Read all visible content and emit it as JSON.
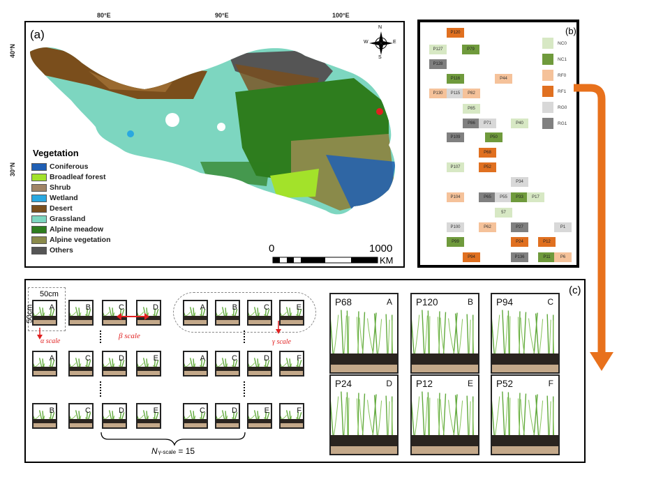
{
  "panel_a": {
    "label": "(a)",
    "lon_ticks": [
      "80°E",
      "90°E",
      "100°E"
    ],
    "lat_ticks": [
      "40°N",
      "30°N"
    ],
    "legend_title": "Vegetation",
    "legend": [
      {
        "name": "Coniferous",
        "color": "#1f5fb4"
      },
      {
        "name": "Broadleaf forest",
        "color": "#a3e22a"
      },
      {
        "name": "Shrub",
        "color": "#a08466"
      },
      {
        "name": "Wetland",
        "color": "#2aa8e0"
      },
      {
        "name": "Desert",
        "color": "#7a4e1c"
      },
      {
        "name": "Grassland",
        "color": "#7dd6c0"
      },
      {
        "name": "Alpine meadow",
        "color": "#2e7d1e"
      },
      {
        "name": "Alpine vegetation",
        "color": "#8a8a4a"
      },
      {
        "name": "Others",
        "color": "#555555"
      }
    ],
    "scale_start": "0",
    "scale_end": "1000",
    "scale_unit": "KM",
    "compass": {
      "n": "N",
      "s": "S",
      "e": "E",
      "w": "W"
    }
  },
  "panel_b": {
    "label": "(b)",
    "key": [
      {
        "name": "NC0",
        "color": "#d7e8c4"
      },
      {
        "name": "NC1",
        "color": "#6f9a3c"
      },
      {
        "name": "RF0",
        "color": "#f5c29a"
      },
      {
        "name": "RF1",
        "color": "#e07020"
      },
      {
        "name": "RG0",
        "color": "#d8d8d8"
      },
      {
        "name": "RG1",
        "color": "#808080"
      }
    ],
    "plots": [
      {
        "id": "P120",
        "t": "RF1"
      },
      {
        "id": "P127",
        "t": "NC0"
      },
      {
        "id": "P79",
        "t": "NC1"
      },
      {
        "id": "P128",
        "t": "RG1"
      },
      {
        "id": "P116",
        "t": "NC1"
      },
      {
        "id": "P44",
        "t": "RF0"
      },
      {
        "id": "P130",
        "t": "RF0"
      },
      {
        "id": "P115",
        "t": "RG0"
      },
      {
        "id": "P82",
        "t": "RF0"
      },
      {
        "id": "P85",
        "t": "NC0"
      },
      {
        "id": "P86",
        "t": "RG1"
      },
      {
        "id": "P71",
        "t": "RG0"
      },
      {
        "id": "P40",
        "t": "NC0"
      },
      {
        "id": "P109",
        "t": "RG1"
      },
      {
        "id": "P50",
        "t": "NC1"
      },
      {
        "id": "P68",
        "t": "RF1"
      },
      {
        "id": "P107",
        "t": "NC0"
      },
      {
        "id": "P52",
        "t": "RF1"
      },
      {
        "id": "P34",
        "t": "RG0"
      },
      {
        "id": "P104",
        "t": "RF0"
      },
      {
        "id": "P65",
        "t": "RG1"
      },
      {
        "id": "P55",
        "t": "RG0"
      },
      {
        "id": "P33",
        "t": "NC1"
      },
      {
        "id": "P17",
        "t": "NC0"
      },
      {
        "id": "57",
        "t": "NC0"
      },
      {
        "id": "P100",
        "t": "RG0"
      },
      {
        "id": "P62",
        "t": "RF0"
      },
      {
        "id": "P27",
        "t": "RG1"
      },
      {
        "id": "P1",
        "t": "RG0"
      },
      {
        "id": "P99",
        "t": "NC1"
      },
      {
        "id": "P24",
        "t": "RF1"
      },
      {
        "id": "P12",
        "t": "RF1"
      },
      {
        "id": "P94",
        "t": "RF1"
      },
      {
        "id": "P136",
        "t": "RG1"
      },
      {
        "id": "P11",
        "t": "NC1"
      },
      {
        "id": "P6",
        "t": "RF0"
      }
    ]
  },
  "panel_c": {
    "label": "(c)",
    "size_w": "50cm",
    "size_h": "50cm",
    "alpha_label": "α scale",
    "beta_label": "β scale",
    "gamma_label": "γ scale",
    "n_label": "N",
    "n_sub": "γ-scale",
    "n_value": "= 15",
    "rows": [
      [
        "A",
        "B",
        "C",
        "D",
        "A",
        "B",
        "C",
        "E"
      ],
      [
        "A",
        "C",
        "D",
        "E",
        "A",
        "C",
        "D",
        "F"
      ],
      [
        "B",
        "C",
        "D",
        "E",
        "C",
        "D",
        "E",
        "F"
      ]
    ],
    "examples": [
      {
        "plot": "P68",
        "sub": "A"
      },
      {
        "plot": "P120",
        "sub": "B"
      },
      {
        "plot": "P94",
        "sub": "C"
      },
      {
        "plot": "P24",
        "sub": "D"
      },
      {
        "plot": "P12",
        "sub": "E"
      },
      {
        "plot": "P52",
        "sub": "F"
      }
    ]
  },
  "colors": {
    "arrow": "#e8711c",
    "red": "#e02020"
  }
}
